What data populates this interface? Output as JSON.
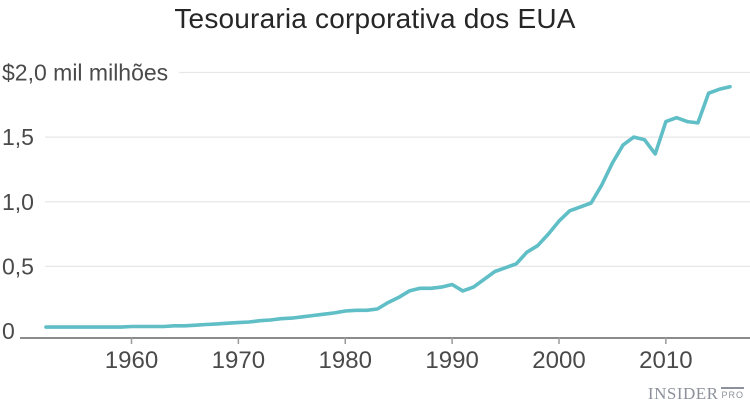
{
  "title": "Tesouraria corporativa dos EUA",
  "logo": {
    "main": "INSIDER",
    "pro": "PRO"
  },
  "colors": {
    "line": "#5FBEC6",
    "grid": "#E7E7E7",
    "axis": "#8B8B8B",
    "tick": "#9A9A9A",
    "label_text": "#4A4A4A",
    "title_text": "#262626",
    "logo_text": "#8C919B",
    "background": "#FFFFFF"
  },
  "chart_data": {
    "type": "line",
    "title": "Tesouraria corporativa dos EUA",
    "unit_label": "$2,0 mil milhões",
    "xlabel": "",
    "ylabel": "$ mil milhões",
    "xlim": [
      1952,
      2016
    ],
    "ylim": [
      0,
      2.0
    ],
    "grid": "horizontal",
    "legend": "none",
    "x_ticks": [
      1960,
      1970,
      1980,
      1990,
      2000,
      2010
    ],
    "y_ticks": [
      {
        "value": 2.0,
        "label": "$2,0 mil milhões"
      },
      {
        "value": 1.5,
        "label": "1,5"
      },
      {
        "value": 1.0,
        "label": "1,0"
      },
      {
        "value": 0.5,
        "label": "0,5"
      },
      {
        "value": 0,
        "label": "0"
      }
    ],
    "series": [
      {
        "name": "Tesouraria corporativa dos EUA ($ mil milhões)",
        "x": [
          1952,
          1953,
          1954,
          1955,
          1956,
          1957,
          1958,
          1959,
          1960,
          1961,
          1962,
          1963,
          1964,
          1965,
          1966,
          1967,
          1968,
          1969,
          1970,
          1971,
          1972,
          1973,
          1974,
          1975,
          1976,
          1977,
          1978,
          1979,
          1980,
          1981,
          1982,
          1983,
          1984,
          1985,
          1986,
          1987,
          1988,
          1989,
          1990,
          1991,
          1992,
          1993,
          1994,
          1995,
          1996,
          1997,
          1998,
          1999,
          2000,
          2001,
          2002,
          2003,
          2004,
          2005,
          2006,
          2007,
          2008,
          2009,
          2010,
          2011,
          2012,
          2013,
          2014,
          2015,
          2016
        ],
        "values": [
          0.03,
          0.03,
          0.03,
          0.03,
          0.03,
          0.03,
          0.03,
          0.03,
          0.035,
          0.035,
          0.035,
          0.035,
          0.04,
          0.04,
          0.045,
          0.05,
          0.055,
          0.06,
          0.065,
          0.07,
          0.08,
          0.085,
          0.095,
          0.1,
          0.11,
          0.12,
          0.13,
          0.14,
          0.155,
          0.16,
          0.16,
          0.17,
          0.22,
          0.26,
          0.31,
          0.33,
          0.33,
          0.34,
          0.36,
          0.31,
          0.34,
          0.4,
          0.46,
          0.49,
          0.52,
          0.61,
          0.66,
          0.75,
          0.85,
          0.93,
          0.96,
          0.99,
          1.13,
          1.3,
          1.44,
          1.5,
          1.48,
          1.37,
          1.62,
          1.65,
          1.62,
          1.61,
          1.84,
          1.87,
          1.89
        ]
      }
    ]
  }
}
